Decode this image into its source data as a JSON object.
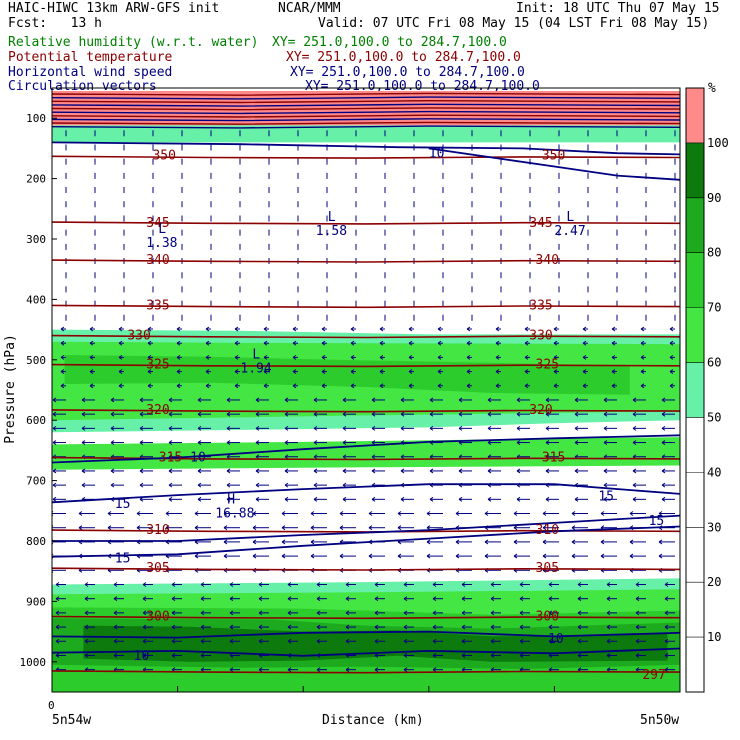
{
  "header": {
    "title_left": "HAIC-HIWC 13km ARW-GFS init",
    "title_center": "NCAR/MMM",
    "init": "Init: 18 UTC Thu 07 May 15",
    "fcst": "Fcst:   13 h",
    "valid": "Valid: 07 UTC Fri 08 May 15 (04 LST Fri 08 May 15)",
    "fields": [
      {
        "name": "Relative humidity (w.r.t. water)",
        "xy": "XY= 251.0,100.0 to 284.7,100.0",
        "color": "#008000"
      },
      {
        "name": "Potential temperature",
        "xy": "XY= 251.0,100.0 to 284.7,100.0",
        "color": "#8b0000"
      },
      {
        "name": "Horizontal wind speed",
        "xy": "XY= 251.0,100.0 to 284.7,100.0",
        "color": "#000080"
      },
      {
        "name": "Circulation vectors",
        "xy": "XY= 251.0,100.0 to 284.7,100.0",
        "color": "#000080"
      }
    ]
  },
  "chart_data": {
    "type": "heatmap",
    "xlabel": "Distance (km)",
    "ylabel": "Pressure (hPa)",
    "x_tick_labels": [
      "0"
    ],
    "x_end_labels": [
      "5n54w",
      "5n50w"
    ],
    "y_ticks": [
      100,
      200,
      300,
      400,
      500,
      600,
      700,
      800,
      900,
      1000
    ],
    "y_range": [
      50,
      1050
    ],
    "colorbar": {
      "unit": "%",
      "ticks": [
        10,
        20,
        30,
        40,
        50,
        60,
        70,
        80,
        90,
        100
      ],
      "bins": [
        {
          "from": 0,
          "to": 50,
          "color": "#ffffff"
        },
        {
          "from": 50,
          "to": 60,
          "color": "#66f0a8"
        },
        {
          "from": 60,
          "to": 70,
          "color": "#44e644"
        },
        {
          "from": 70,
          "to": 80,
          "color": "#2ccc2c"
        },
        {
          "from": 80,
          "to": 90,
          "color": "#1eaa1e"
        },
        {
          "from": 90,
          "to": 100,
          "color": "#0c7a0c"
        },
        {
          "from": 100,
          "to": 110,
          "color": "#ff8a8a"
        }
      ]
    },
    "theta_contours": [
      {
        "label": "350",
        "p": 163
      },
      {
        "label": "345",
        "p": 272
      },
      {
        "label": "340",
        "p": 335
      },
      {
        "label": "335",
        "p": 410
      },
      {
        "label": "330",
        "p": 460
      },
      {
        "label": "325",
        "p": 508
      },
      {
        "label": "320",
        "p": 583
      },
      {
        "label": "315",
        "p": 662
      },
      {
        "label": "310",
        "p": 782
      },
      {
        "label": "305",
        "p": 845
      },
      {
        "label": "300",
        "p": 925
      },
      {
        "label": "297",
        "p": 1015
      }
    ],
    "wind_labels": [
      "10",
      "10",
      "15",
      "15",
      "15",
      "15",
      "10",
      "10"
    ],
    "markers": [
      {
        "letter": "L",
        "value": "1.38"
      },
      {
        "letter": "L",
        "value": "1.58"
      },
      {
        "letter": "L",
        "value": "2.47"
      },
      {
        "letter": "L",
        "value": "1.94"
      },
      {
        "letter": "H",
        "value": "16.88"
      }
    ]
  }
}
